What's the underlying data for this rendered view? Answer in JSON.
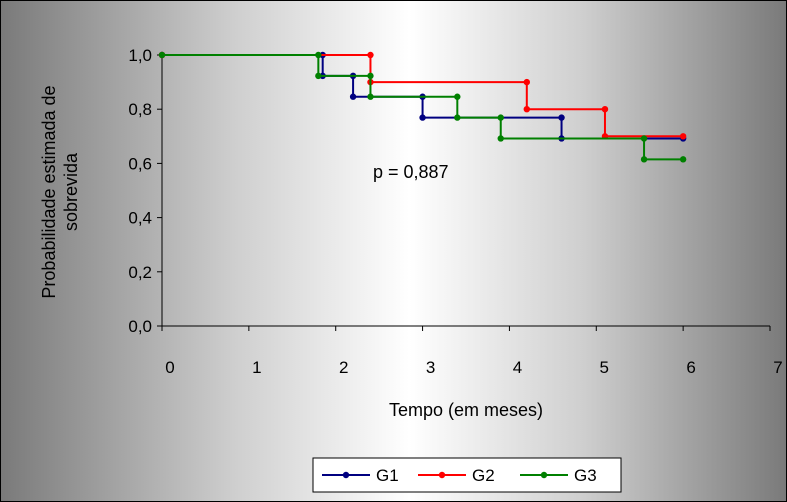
{
  "chart_data": {
    "type": "line",
    "step": true,
    "ylabel_lines": [
      "Probabilidade estimada de",
      "sobrevida"
    ],
    "xlabel": "Tempo (em meses)",
    "annotation": "p = 0,887",
    "xlim": [
      0,
      7
    ],
    "ylim": [
      0,
      1
    ],
    "x_ticks": [
      "0",
      "1",
      "2",
      "3",
      "4",
      "5",
      "6",
      "7"
    ],
    "y_ticks": [
      "0,0",
      "0,2",
      "0,4",
      "0,6",
      "0,8",
      "1,0"
    ],
    "legend_position": "bottom",
    "series": [
      {
        "name": "G1",
        "color": "#000080",
        "x": [
          0,
          1.85,
          2.2,
          3.0,
          4.6,
          6.0
        ],
        "y": [
          1.0,
          0.923,
          0.846,
          0.769,
          0.692,
          0.692
        ]
      },
      {
        "name": "G2",
        "color": "#ff0000",
        "x": [
          0,
          2.4,
          4.2,
          5.1,
          6.0
        ],
        "y": [
          1.0,
          0.9,
          0.8,
          0.7,
          0.7
        ]
      },
      {
        "name": "G3",
        "color": "#008000",
        "x": [
          0,
          1.8,
          2.4,
          3.4,
          3.9,
          5.55,
          6.0
        ],
        "y": [
          1.0,
          0.923,
          0.846,
          0.769,
          0.692,
          0.615,
          0.615
        ]
      }
    ]
  }
}
